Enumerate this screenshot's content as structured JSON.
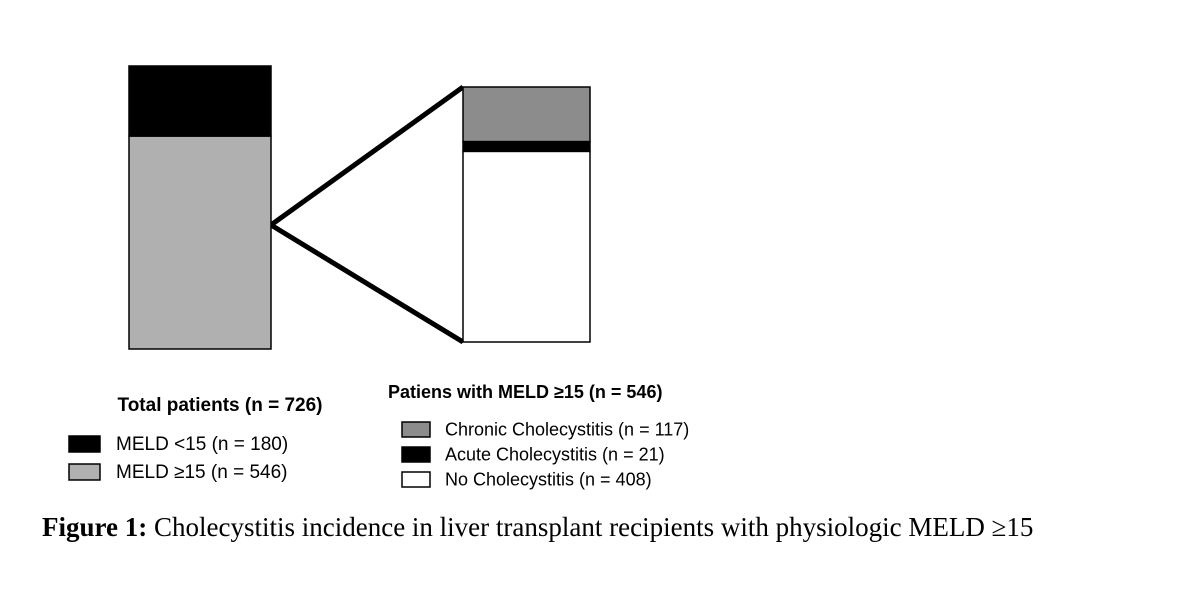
{
  "chart_data": [
    {
      "type": "stacked-bar",
      "title": "Total patients (n = 726)",
      "series": [
        {
          "name": "MELD <15 (n = 180)",
          "color": "#000000",
          "values": [
            180
          ]
        },
        {
          "name": "MELD ≥15 (n = 546)",
          "color": "#b0b0b0",
          "values": [
            546
          ]
        }
      ]
    },
    {
      "type": "stacked-bar",
      "title": "Patiens with MELD ≥15 (n = 546)",
      "series": [
        {
          "name": "Chronic Cholecystitis (n = 117)",
          "color": "#8c8c8c",
          "values": [
            117
          ]
        },
        {
          "name": "Acute Cholecystitis (n = 21)",
          "color": "#000000",
          "values": [
            21
          ]
        },
        {
          "name": "No Cholecystitis (n = 408)",
          "color": "#ffffff",
          "values": [
            408
          ]
        }
      ]
    }
  ],
  "caption": {
    "label": "Figure 1:",
    "text": "Cholecystitis incidence in liver transplant recipients with physiologic MELD ≥15"
  }
}
